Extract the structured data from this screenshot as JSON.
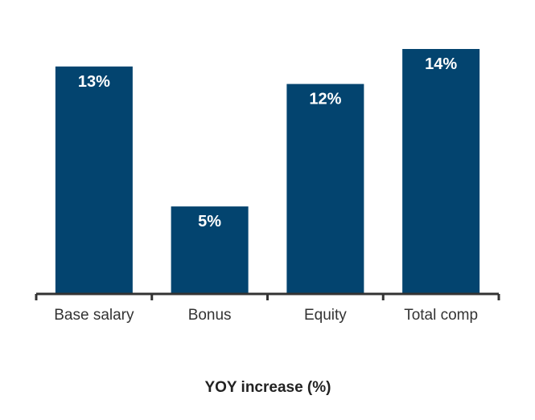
{
  "chart_data": {
    "type": "bar",
    "categories": [
      "Base salary",
      "Bonus",
      "Equity",
      "Total comp"
    ],
    "values": [
      13,
      5,
      12,
      14
    ],
    "data_labels": [
      "13%",
      "5%",
      "12%",
      "14%"
    ],
    "title": "",
    "xlabel": "YOY increase (%)",
    "ylabel": "",
    "ylim": [
      0,
      14
    ],
    "grid": false,
    "bar_color": "#03446f",
    "axis_color": "#333333"
  }
}
